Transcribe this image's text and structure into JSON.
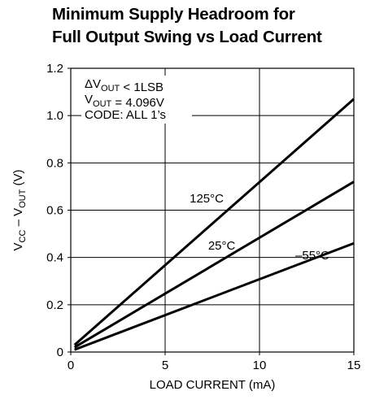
{
  "chart_data": {
    "type": "line",
    "title_lines": [
      "Minimum Supply Headroom for",
      "Full Output Swing vs Load Current"
    ],
    "xlabel": "LOAD CURRENT (mA)",
    "ylabel": {
      "p1": "V",
      "s1": "CC",
      "p2": " – V",
      "s2": "OUT",
      "p3": " (V)"
    },
    "xlim": [
      0,
      15
    ],
    "ylim": [
      0,
      1.2
    ],
    "x_ticks": [
      0,
      5,
      10,
      15
    ],
    "x_tick_labels": [
      "0",
      "5",
      "10",
      "15"
    ],
    "y_ticks": [
      0,
      0.2,
      0.4,
      0.6,
      0.8,
      1.0,
      1.2
    ],
    "y_tick_labels": [
      "0",
      "0.2",
      "0.4",
      "0.6",
      "0.8",
      "1.0",
      "1.2"
    ],
    "grid": true,
    "annotation_lines": [
      [
        {
          "t": "ΔV"
        },
        {
          "t": "OUT",
          "sub": true
        },
        {
          "t": " < 1LSB"
        }
      ],
      [
        {
          "t": "V"
        },
        {
          "t": "OUT",
          "sub": true
        },
        {
          "t": " = 4.096V"
        }
      ],
      [
        {
          "t": "CODE: ALL 1’s"
        }
      ]
    ],
    "series": [
      {
        "name": "125°C",
        "x": [
          0.2,
          15
        ],
        "y": [
          0.03,
          1.07
        ],
        "label_at": [
          7.2,
          0.65
        ]
      },
      {
        "name": "25°C",
        "x": [
          0.2,
          15
        ],
        "y": [
          0.02,
          0.72
        ],
        "label_at": [
          8.0,
          0.45
        ]
      },
      {
        "name": "–55°C",
        "x": [
          0.2,
          15
        ],
        "y": [
          0.01,
          0.46
        ],
        "label_at": [
          12.8,
          0.41
        ]
      }
    ],
    "line_color": "#000000"
  }
}
